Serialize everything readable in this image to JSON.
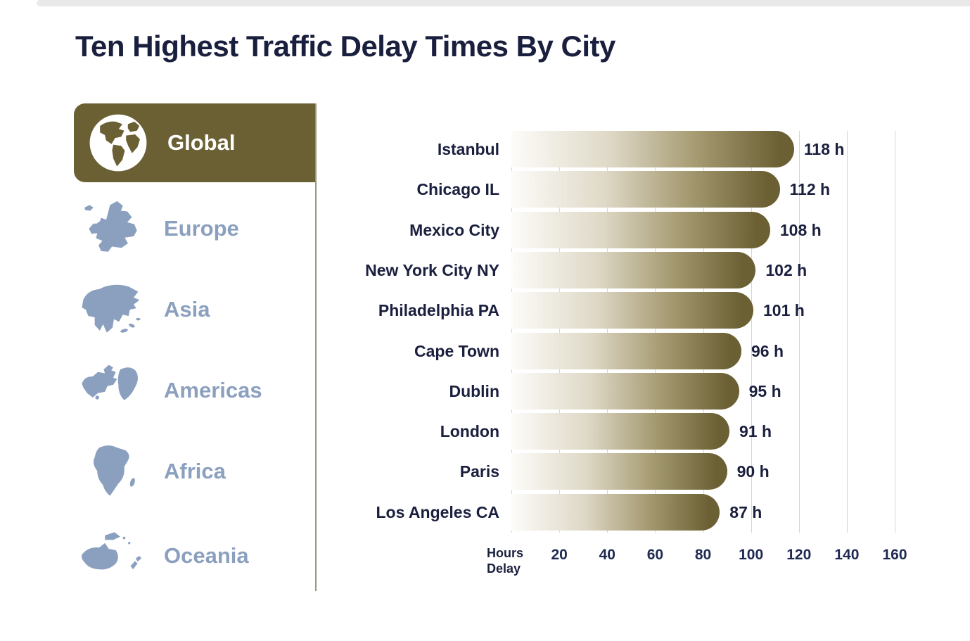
{
  "page": {
    "title": "Ten Highest Traffic Delay Times By City"
  },
  "sidebar": {
    "active": {
      "label": "Global"
    },
    "items": [
      {
        "label": "Europe"
      },
      {
        "label": "Asia"
      },
      {
        "label": "Americas"
      },
      {
        "label": "Africa"
      },
      {
        "label": "Oceania"
      }
    ]
  },
  "chart_data": {
    "type": "bar",
    "orientation": "horizontal",
    "title": "Ten Highest Traffic Delay Times By City",
    "categories": [
      "Istanbul",
      "Chicago IL",
      "Mexico City",
      "New York City NY",
      "Philadelphia PA",
      "Cape Town",
      "Dublin",
      "London",
      "Paris",
      "Los Angeles CA"
    ],
    "values": [
      118,
      112,
      108,
      102,
      101,
      96,
      95,
      91,
      90,
      87
    ],
    "unit": "h",
    "xlabel": "Hours Delay",
    "xlabel_lines": [
      "Hours",
      "Delay"
    ],
    "x_ticks": [
      20,
      40,
      60,
      80,
      100,
      120,
      140,
      160
    ],
    "xlim": [
      0,
      160
    ],
    "grid": true,
    "legend": "none"
  },
  "colors": {
    "accent_olive": "#6b6034",
    "navy_text": "#1a1f3e",
    "slate_blue": "#8ba0bf",
    "gridline": "#d2d5de",
    "divider": "#98977f",
    "bar_gradient_start": "#fdfcf9",
    "bar_gradient_end": "#6b6034"
  }
}
